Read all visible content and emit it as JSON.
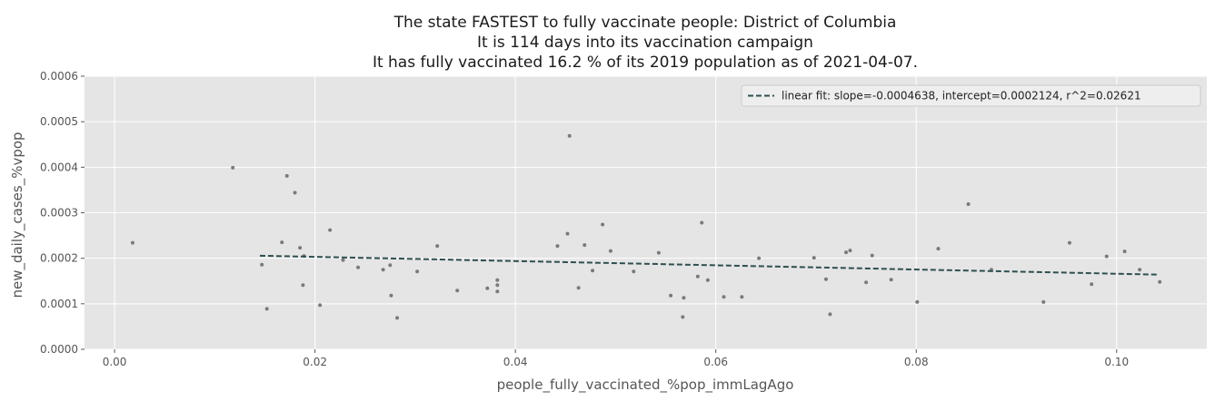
{
  "chart_data": {
    "type": "scatter",
    "title_lines": [
      "The state FASTEST to fully vaccinate people: District of Columbia",
      "It is 114 days into its vaccination campaign",
      "It has fully vaccinated  16.2 % of its 2019 population as of 2021-04-07."
    ],
    "xlabel": "people_fully_vaccinated_%pop_immLagAgo",
    "ylabel": "new_daily_cases_%vpop",
    "xlim": [
      -0.003,
      0.109
    ],
    "ylim": [
      0.0,
      0.0006
    ],
    "xticks": [
      0.0,
      0.02,
      0.04,
      0.06,
      0.08,
      0.1
    ],
    "xtick_labels": [
      "0.00",
      "0.02",
      "0.04",
      "0.06",
      "0.08",
      "0.10"
    ],
    "yticks": [
      0.0,
      0.0001,
      0.0002,
      0.0003,
      0.0004,
      0.0005,
      0.0006
    ],
    "ytick_labels": [
      "0.0000",
      "0.0001",
      "0.0002",
      "0.0003",
      "0.0004",
      "0.0005",
      "0.0006"
    ],
    "grid": true,
    "legend_position": "top-right",
    "colors": {
      "background": "#e5e5e5",
      "grid": "#ffffff",
      "points": "#7a7a7a",
      "fit_line": "#2f4f4f"
    },
    "fit": {
      "label": "linear fit: slope=-0.0004638, intercept=0.0002124, r^2=0.02621",
      "slope": -0.0004638,
      "intercept": 0.0002124,
      "x_range": [
        0.0145,
        0.104
      ]
    },
    "points": [
      [
        0.0018,
        0.000234
      ],
      [
        0.0118,
        0.000399
      ],
      [
        0.0147,
        0.000186
      ],
      [
        0.0152,
        8.9e-05
      ],
      [
        0.0167,
        0.000235
      ],
      [
        0.0172,
        0.000381
      ],
      [
        0.018,
        0.000344
      ],
      [
        0.0185,
        0.000223
      ],
      [
        0.0188,
        0.000141
      ],
      [
        0.0189,
        0.000205
      ],
      [
        0.0205,
        9.7e-05
      ],
      [
        0.0215,
        0.000262
      ],
      [
        0.0228,
        0.000196
      ],
      [
        0.0243,
        0.00018
      ],
      [
        0.0268,
        0.000175
      ],
      [
        0.0275,
        0.000185
      ],
      [
        0.0276,
        0.000118
      ],
      [
        0.0282,
        6.9e-05
      ],
      [
        0.0302,
        0.000171
      ],
      [
        0.0322,
        0.000227
      ],
      [
        0.0342,
        0.000129
      ],
      [
        0.0372,
        0.000134
      ],
      [
        0.0382,
        0.000141
      ],
      [
        0.0382,
        0.000152
      ],
      [
        0.0382,
        0.000127
      ],
      [
        0.0442,
        0.000227
      ],
      [
        0.0452,
        0.000254
      ],
      [
        0.0454,
        0.000469
      ],
      [
        0.0463,
        0.000135
      ],
      [
        0.0469,
        0.000229
      ],
      [
        0.0477,
        0.000173
      ],
      [
        0.0487,
        0.000274
      ],
      [
        0.0495,
        0.000216
      ],
      [
        0.0518,
        0.000171
      ],
      [
        0.0543,
        0.000212
      ],
      [
        0.0555,
        0.000118
      ],
      [
        0.0567,
        7.1e-05
      ],
      [
        0.0568,
        0.000113
      ],
      [
        0.0582,
        0.00016
      ],
      [
        0.0586,
        0.000278
      ],
      [
        0.0592,
        0.000152
      ],
      [
        0.0608,
        0.000115
      ],
      [
        0.0626,
        0.000115
      ],
      [
        0.0643,
        0.0002
      ],
      [
        0.0698,
        0.000201
      ],
      [
        0.071,
        0.000154
      ],
      [
        0.0714,
        7.7e-05
      ],
      [
        0.073,
        0.000213
      ],
      [
        0.0734,
        0.000217
      ],
      [
        0.075,
        0.000147
      ],
      [
        0.0756,
        0.000206
      ],
      [
        0.0775,
        0.000153
      ],
      [
        0.0801,
        0.000104
      ],
      [
        0.0822,
        0.000221
      ],
      [
        0.0852,
        0.000319
      ],
      [
        0.0875,
        0.000175
      ],
      [
        0.0927,
        0.000104
      ],
      [
        0.0953,
        0.000234
      ],
      [
        0.0975,
        0.000143
      ],
      [
        0.099,
        0.000204
      ],
      [
        0.1008,
        0.000215
      ],
      [
        0.1023,
        0.000175
      ],
      [
        0.1043,
        0.000148
      ]
    ]
  }
}
